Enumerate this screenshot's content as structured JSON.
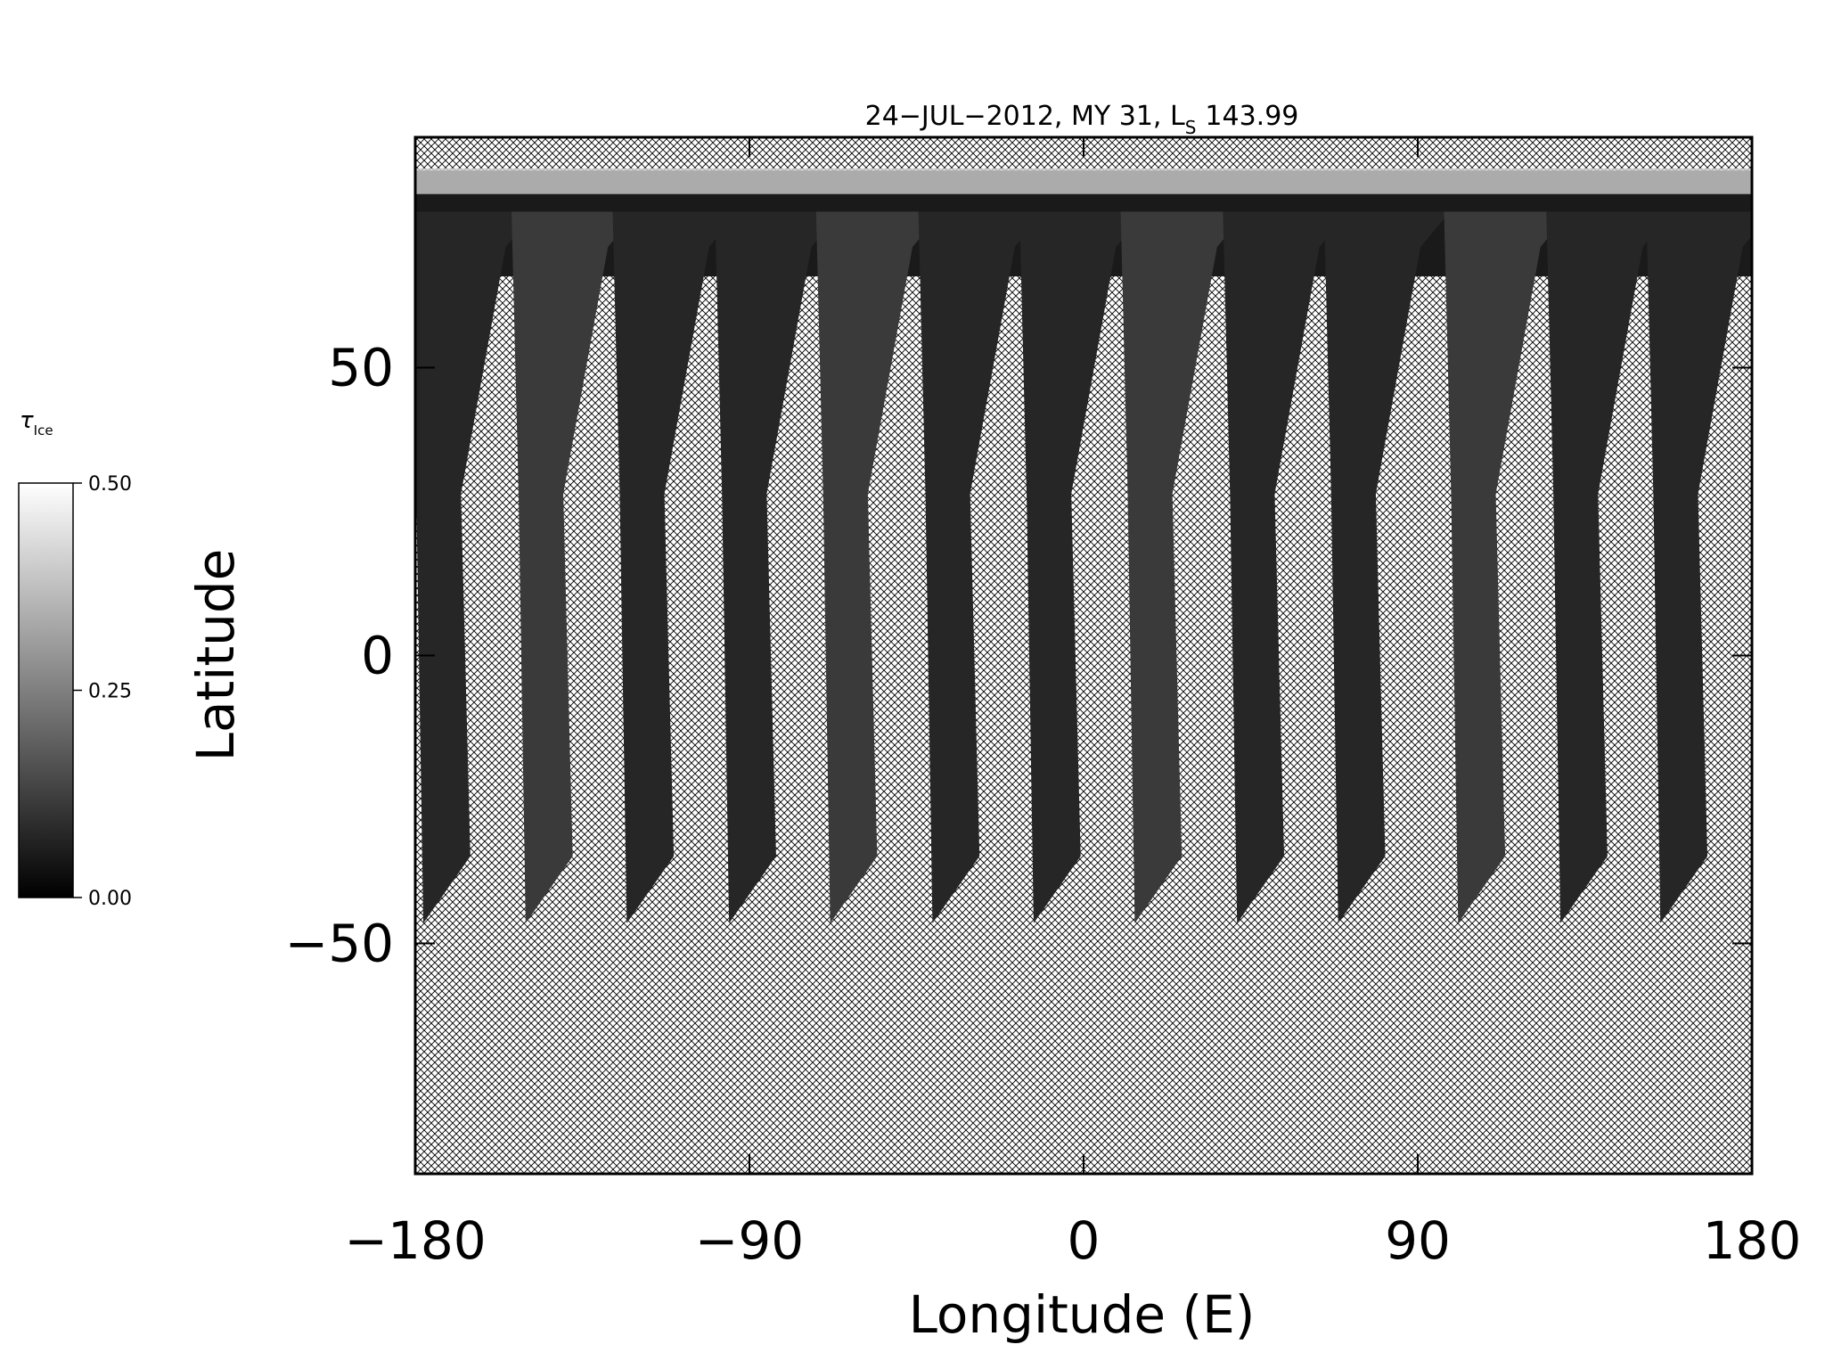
{
  "chart_data": {
    "type": "map",
    "title": {
      "main": "24−JUL−2012, MY 31,  L",
      "subscript": "S",
      "value": "143.99"
    },
    "x_label": "Longitude (E)",
    "y_label": "Latitude",
    "xlim": [
      -180,
      180
    ],
    "ylim": [
      -90,
      90
    ],
    "xticks": [
      {
        "value": -180,
        "label": "−180"
      },
      {
        "value": -90,
        "label": "−90"
      },
      0,
      90,
      180
    ],
    "yticks": [
      {
        "value": -50,
        "label": "−50"
      },
      0,
      50
    ],
    "colorbar": {
      "label": "τ",
      "label_subscript": "Ice",
      "lim": [
        0,
        0.5
      ],
      "ticks": [
        {
          "value": 0,
          "label": "0.00"
        },
        {
          "value": 0.25,
          "label": "0.25"
        },
        {
          "value": 0.5,
          "label": "0.50"
        }
      ],
      "colors": [
        "#000000",
        "#ffffff"
      ]
    }
  }
}
